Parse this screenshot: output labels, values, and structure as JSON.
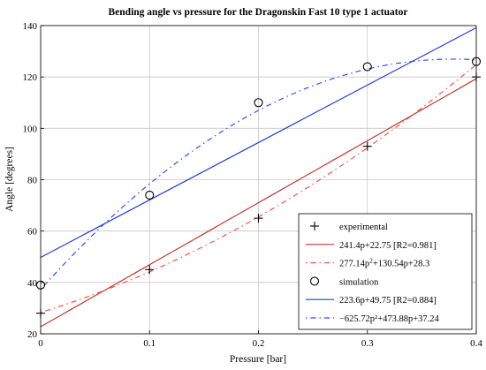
{
  "chart_data": {
    "type": "scatter",
    "title": "Bending angle vs pressure for the Dragonskin Fast 10 type 1 actuator",
    "xlabel": "Pressure [bar]",
    "ylabel": "Angle [degrees]",
    "xlim": [
      0,
      0.4
    ],
    "ylim": [
      20,
      140
    ],
    "xticks": [
      0,
      0.1,
      0.2,
      0.3,
      0.4
    ],
    "xtick_labels": [
      "0",
      "0.1",
      "0.2",
      "0.3",
      "0.4"
    ],
    "yticks": [
      20,
      40,
      60,
      80,
      100,
      120,
      140
    ],
    "ytick_labels": [
      "20",
      "40",
      "60",
      "80",
      "100",
      "120",
      "140"
    ],
    "grid": true,
    "legend_position": "bottom-right",
    "series": [
      {
        "name": "experimental",
        "kind": "markers",
        "marker": "plus",
        "color": "#000000",
        "x": [
          0,
          0.1,
          0.2,
          0.3,
          0.4
        ],
        "y": [
          28,
          45,
          65,
          93,
          120
        ]
      },
      {
        "name": "241.4p+22.75 [R2=0.981]",
        "kind": "line",
        "style": "solid",
        "color": "#c0392b",
        "fit": "linear",
        "coefficients": [
          241.4,
          22.75
        ]
      },
      {
        "name_parts": [
          "277.14p",
          "2",
          "+130.54p+28.3"
        ],
        "kind": "line",
        "style": "dashdot",
        "color": "#ff4d4d",
        "fit": "quadratic",
        "coefficients": [
          277.14,
          130.54,
          28.3
        ]
      },
      {
        "name": "simulation",
        "kind": "markers",
        "marker": "circle",
        "color": "#000000",
        "x": [
          0,
          0.1,
          0.2,
          0.3,
          0.4
        ],
        "y": [
          39,
          74,
          110,
          124,
          126
        ]
      },
      {
        "name": "223.6p+49.75 [R2=0.884]",
        "kind": "line",
        "style": "solid",
        "color": "#1f3fd6",
        "fit": "linear",
        "coefficients": [
          223.6,
          49.75
        ]
      },
      {
        "name": "−625.72p²+473.88p+37.24",
        "kind": "line",
        "style": "dashdot",
        "color": "#2b4dff",
        "fit": "quadratic",
        "coefficients": [
          -625.72,
          473.88,
          37.24
        ]
      }
    ]
  }
}
